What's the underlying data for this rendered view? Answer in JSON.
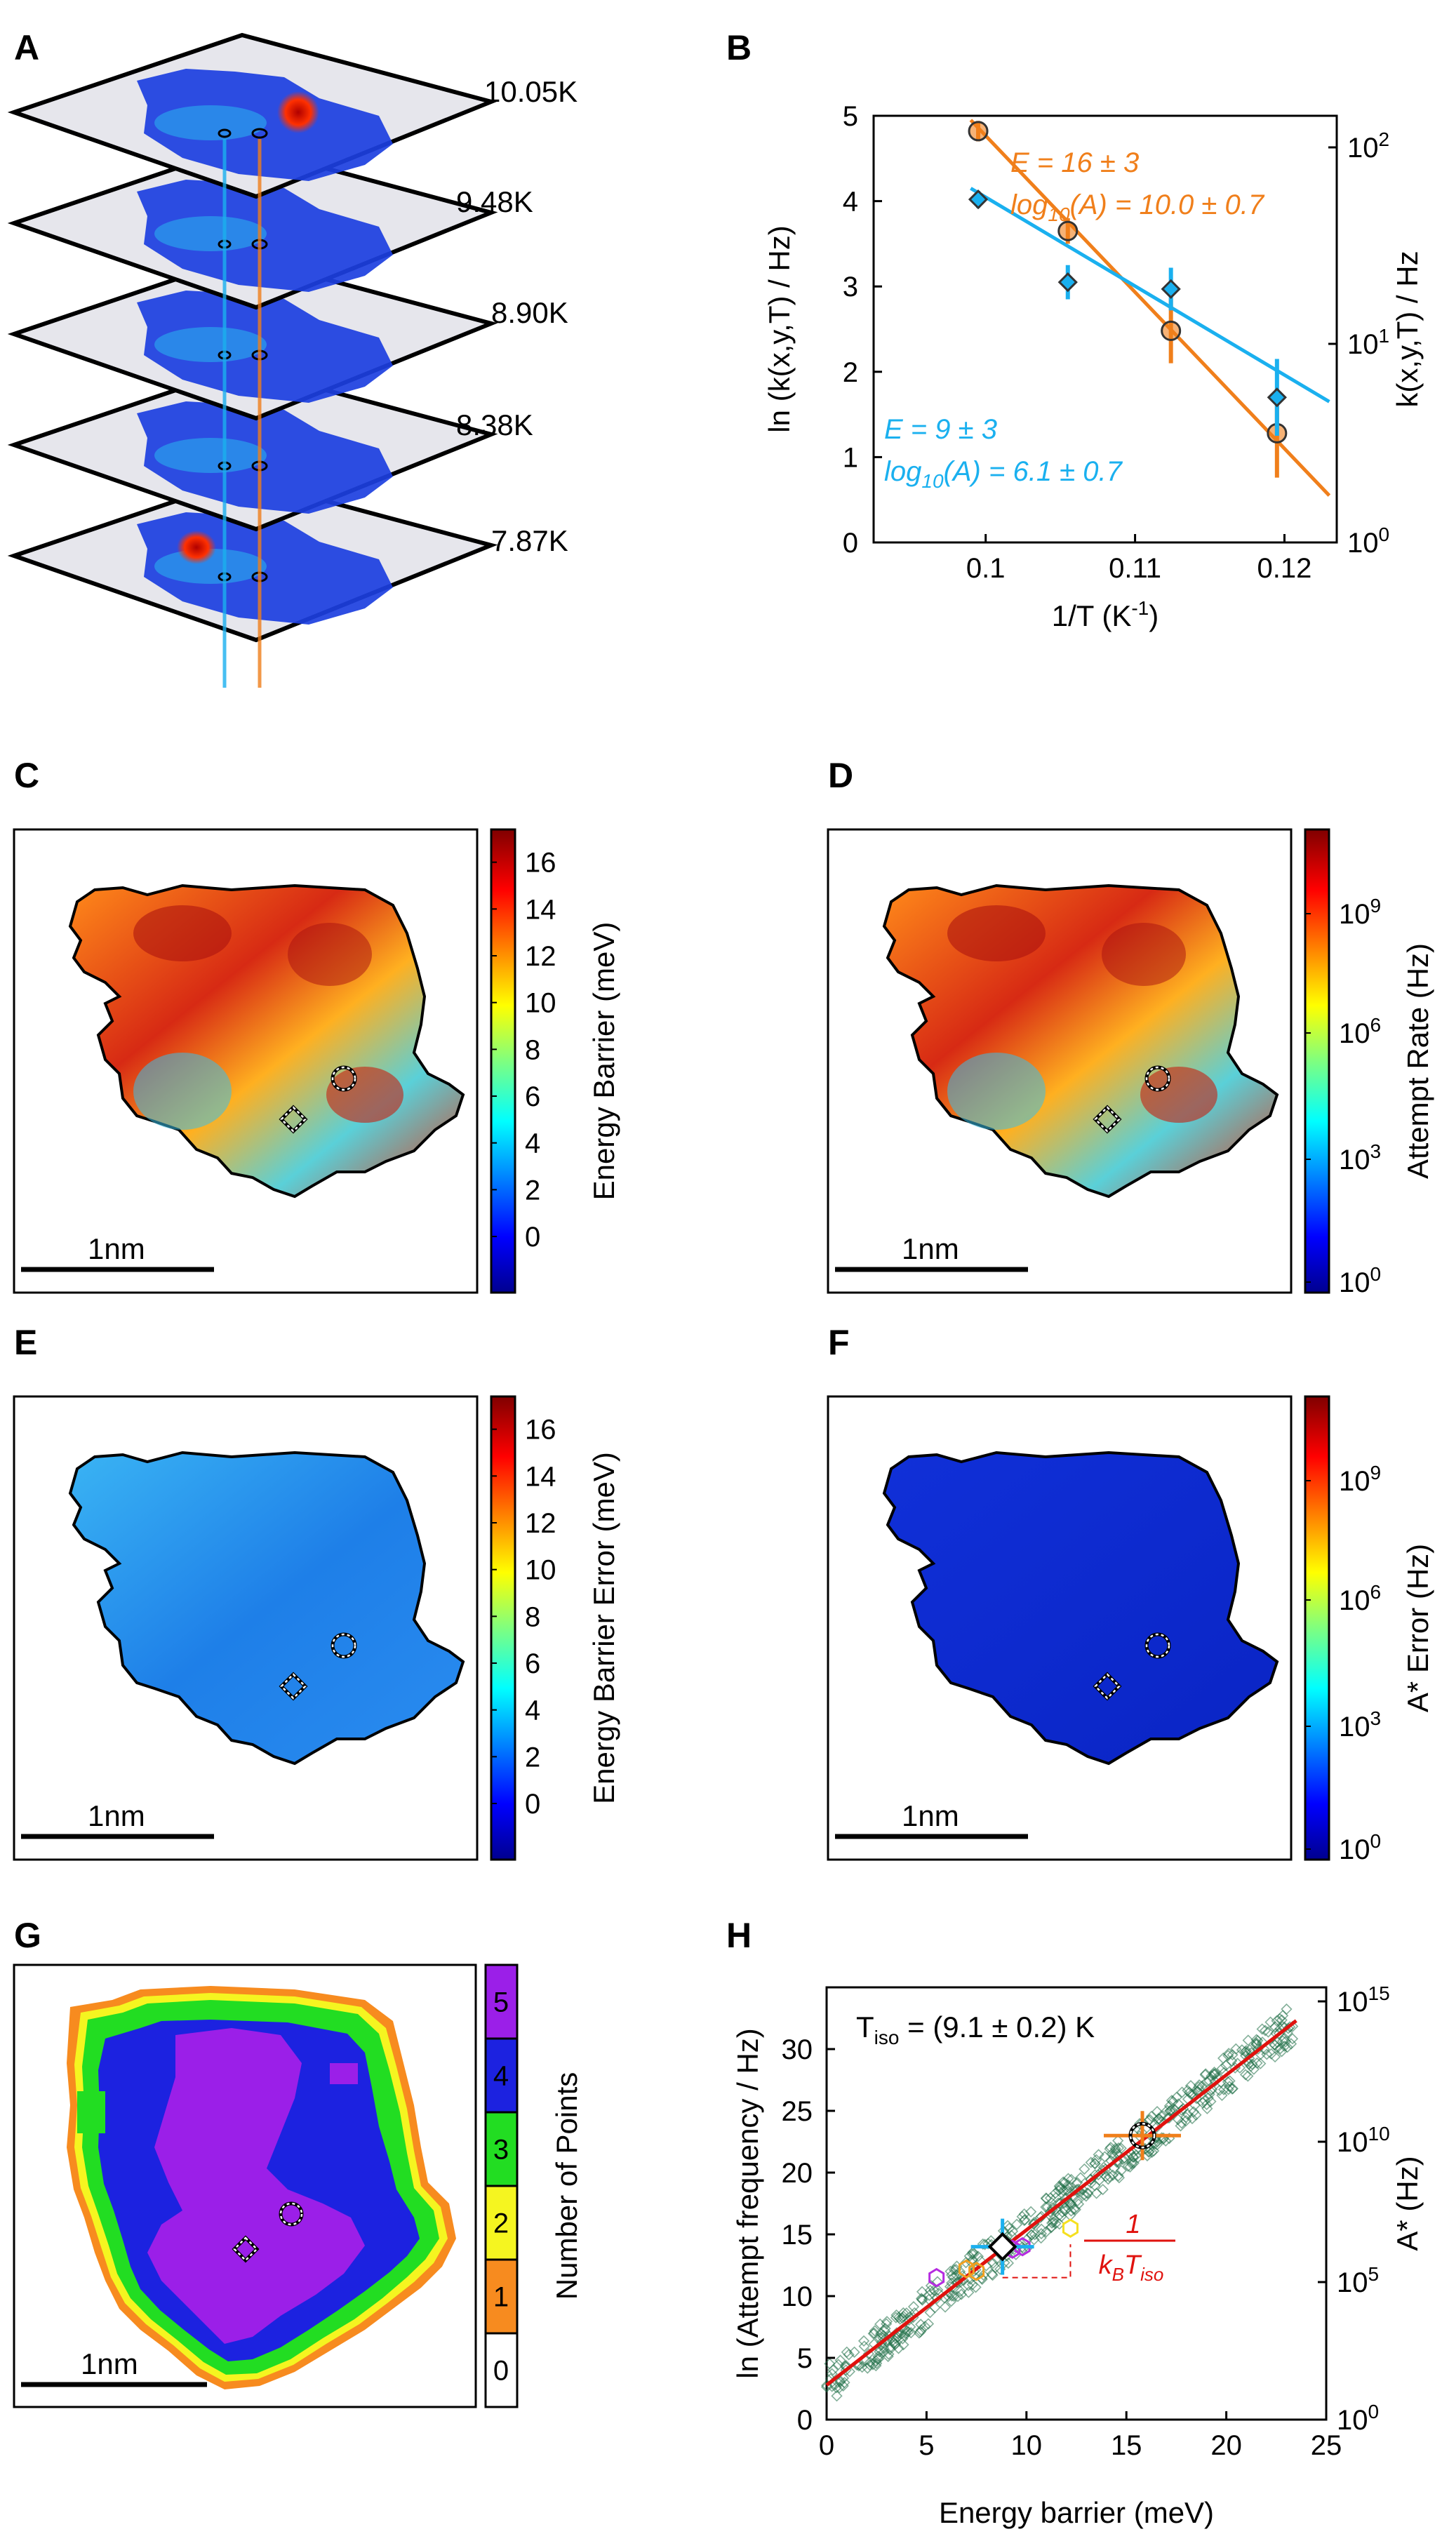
{
  "panel_letters": [
    "A",
    "B",
    "C",
    "D",
    "E",
    "F",
    "G",
    "H"
  ],
  "colors": {
    "orange": "#f07f1b",
    "blue": "#1ab0ef",
    "red": "#e0120e",
    "green": "#1e6e46"
  },
  "chart_data": [
    {
      "panel": "A",
      "type": "other",
      "layer_labels": [
        "10.05K",
        "9.48K",
        "8.90K",
        "8.38K",
        "7.87K"
      ]
    },
    {
      "panel": "B",
      "type": "scatter",
      "xlabel": "1/T (K",
      "xlabel_sup": "-1",
      "xlabel_tail": ")",
      "ylabel": "ln (k(x,y,T) / Hz)",
      "ylabel_right": "k(x,y,T) / Hz",
      "xlim": [
        0.0925,
        0.1235
      ],
      "ylim": [
        0,
        5
      ],
      "xticks": [
        "0.1",
        "0.11",
        "0.12"
      ],
      "yticks": [
        "0",
        "1",
        "2",
        "3",
        "4",
        "5"
      ],
      "yticks_right": [
        "10",
        "10",
        "10"
      ],
      "yticks_right_exp": [
        "0",
        "1",
        "2"
      ],
      "series": [
        {
          "marker": "circle",
          "color": "#f07f1b",
          "x": [
            0.0995,
            0.1055,
            0.1124,
            0.1195
          ],
          "y": [
            4.82,
            3.65,
            2.48,
            1.28
          ],
          "err": [
            0.12,
            0.15,
            0.38,
            0.52
          ],
          "fit": {
            "x": [
              0.099,
              0.123
            ],
            "y": [
              4.95,
              0.55
            ]
          },
          "annotation": [
            "E = 16 ± 3",
            "log",
            "10",
            "(A) =  10.0 ± 0.7"
          ]
        },
        {
          "marker": "diamond",
          "color": "#1ab0ef",
          "x": [
            0.0995,
            0.1055,
            0.1124,
            0.1195
          ],
          "y": [
            4.02,
            3.05,
            2.97,
            1.7
          ],
          "err": [
            0.1,
            0.2,
            0.25,
            0.45
          ],
          "fit": {
            "x": [
              0.099,
              0.123
            ],
            "y": [
              4.15,
              1.65
            ]
          },
          "annotation": [
            "E = 9 ± 3",
            "log",
            "10",
            "(A) =  6.1 ± 0.7"
          ]
        }
      ]
    },
    {
      "panel": "C",
      "type": "heatmap",
      "colorbar_label": "Energy Barrier (meV)",
      "colorbar_ticks": [
        "16",
        "14",
        "12",
        "10",
        "8",
        "6",
        "4",
        "2",
        "0"
      ],
      "scalebar": "1nm"
    },
    {
      "panel": "D",
      "type": "heatmap",
      "colorbar_label": "Attempt Rate (Hz)",
      "colorbar_ticks": [
        "10",
        "10",
        "10",
        "10"
      ],
      "colorbar_exps": [
        "9",
        "6",
        "3",
        "0"
      ],
      "scalebar": "1nm"
    },
    {
      "panel": "E",
      "type": "heatmap",
      "colorbar_label": "Energy Barrier Error (meV)",
      "colorbar_ticks": [
        "16",
        "14",
        "12",
        "10",
        "8",
        "6",
        "4",
        "2",
        "0"
      ],
      "scalebar": "1nm"
    },
    {
      "panel": "F",
      "type": "heatmap",
      "colorbar_label": "A* Error (Hz)",
      "colorbar_ticks": [
        "10",
        "10",
        "10",
        "10"
      ],
      "colorbar_exps": [
        "9",
        "6",
        "3",
        "0"
      ],
      "scalebar": "1nm"
    },
    {
      "panel": "G",
      "type": "heatmap",
      "colorbar_label": "Number of Points",
      "colorbar_ticks": [
        "5",
        "4",
        "3",
        "2",
        "1",
        "0"
      ],
      "colorbar_colors": [
        "#9b1fe8",
        "#1c22e0",
        "#22dd22",
        "#f5f520",
        "#f78b1f",
        "#ffffff"
      ],
      "scalebar": "1nm"
    },
    {
      "panel": "H",
      "type": "scatter",
      "xlabel": "Energy barrier (meV)",
      "ylabel": "ln (Attempt frequency / Hz)",
      "ylabel_right": "A* (Hz)",
      "xlim": [
        0,
        25
      ],
      "ylim": [
        0,
        35
      ],
      "xticks": [
        "0",
        "5",
        "10",
        "15",
        "20",
        "25"
      ],
      "yticks": [
        "0",
        "5",
        "10",
        "15",
        "20",
        "25",
        "30"
      ],
      "yticks_right": [
        "10",
        "10",
        "10",
        "10"
      ],
      "yticks_right_exp": [
        "0",
        "5",
        "10",
        "15"
      ],
      "annotation": [
        "T",
        "iso",
        " = (9.1 ± 0.2) K"
      ],
      "fit": {
        "x": [
          0,
          23.5
        ],
        "y": [
          2.8,
          32.3
        ]
      },
      "slope_label": [
        "1",
        "k",
        "B",
        "T",
        "iso"
      ],
      "highlight_points": {
        "x": [
          8.8,
          15.8
        ],
        "y": [
          14.0,
          23.0
        ]
      },
      "small_points": {
        "x": [
          5.5,
          7.0,
          7.5,
          9.3,
          9.8,
          12.2
        ],
        "y": [
          11.5,
          12.2,
          12.0,
          13.8,
          14.0,
          15.5
        ],
        "colors": [
          "#b52be0",
          "#f0a020",
          "#f0a020",
          "#b52be0",
          "#b52be0",
          "#f5e020"
        ]
      }
    }
  ]
}
